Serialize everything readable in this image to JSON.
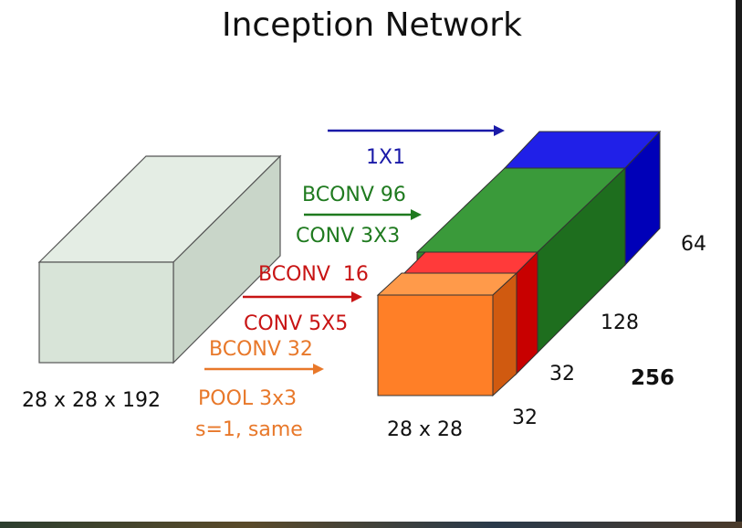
{
  "title": "Inception Network",
  "input": {
    "label": "28 x 28 x 192"
  },
  "branches": [
    {
      "label": "1X1",
      "color": "#1a1aa8"
    },
    {
      "label_top": "BCONV 96",
      "label_bottom": "CONV 3X3",
      "color": "#1f7a1f"
    },
    {
      "label_top": "BCONV  16",
      "label_bottom": "CONV 5X5",
      "color": "#c81414"
    },
    {
      "label_top": "BCONV 32",
      "label_bottom_1": "POOL 3x3",
      "label_bottom_2": "s=1, same",
      "color": "#e8782a"
    }
  ],
  "output": {
    "spatial_label": "28 x 28",
    "depths": [
      "64",
      "128",
      "32",
      "32"
    ],
    "total_depth": "256",
    "colors": {
      "blue": "#1010d0",
      "green": "#2e8b2e",
      "red": "#e82020",
      "orange": "#ff7f27"
    }
  }
}
